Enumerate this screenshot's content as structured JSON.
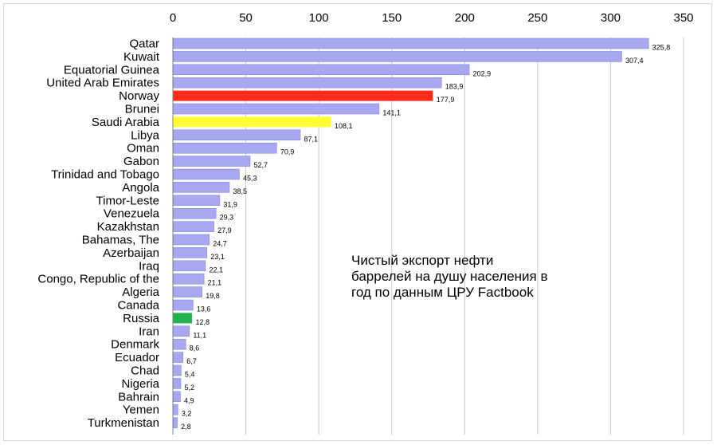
{
  "chart_data": {
    "type": "bar",
    "orientation": "horizontal",
    "categories": [
      "Qatar",
      "Kuwait",
      "Equatorial Guinea",
      "United Arab Emirates",
      "Norway",
      "Brunei",
      "Saudi Arabia",
      "Libya",
      "Oman",
      "Gabon",
      "Trinidad and Tobago",
      "Angola",
      "Timor-Leste",
      "Venezuela",
      "Kazakhstan",
      "Bahamas, The",
      "Azerbaijan",
      "Iraq",
      "Congo, Republic of the",
      "Algeria",
      "Canada",
      "Russia",
      "Iran",
      "Denmark",
      "Ecuador",
      "Chad",
      "Nigeria",
      "Bahrain",
      "Yemen",
      "Turkmenistan"
    ],
    "values": [
      325.8,
      307.4,
      202.9,
      183.9,
      177.9,
      141.1,
      108.1,
      87.1,
      70.9,
      52.7,
      45.3,
      38.5,
      31.9,
      29.3,
      27.9,
      24.7,
      23.1,
      22.1,
      21.1,
      19.8,
      13.6,
      12.8,
      11.1,
      8.6,
      6.7,
      5.4,
      5.2,
      4.9,
      3.2,
      2.8
    ],
    "data_labels": [
      "325,8",
      "307,4",
      "202,9",
      "183,9",
      "177,9",
      "141,1",
      "108,1",
      "87,1",
      "70,9",
      "52,7",
      "45,3",
      "38,5",
      "31,9",
      "29,3",
      "27,9",
      "24,7",
      "23,1",
      "22,1",
      "21,1",
      "19,8",
      "13,6",
      "12,8",
      "11,1",
      "8,6",
      "6,7",
      "5,4",
      "5,2",
      "4,9",
      "3,2",
      "2,8"
    ],
    "highlights": {
      "Norway": "#ff2a1a",
      "Saudi Arabia": "#ffff33",
      "Russia": "#22b14c"
    },
    "default_bar_color": "#a7a7f2",
    "bar_edge_color": "#7f7fd0",
    "x_ticks": [
      0,
      50,
      100,
      150,
      200,
      250,
      300,
      350
    ],
    "xlim": [
      0,
      350
    ],
    "x_axis_position": "top",
    "grid": "vertical",
    "grid_color": "#c8c8c8",
    "legend": "none",
    "annotation": [
      "Чистый экспорт нефти",
      "баррелей на душу населения в",
      "год по данным ЦРУ Factbook"
    ]
  }
}
